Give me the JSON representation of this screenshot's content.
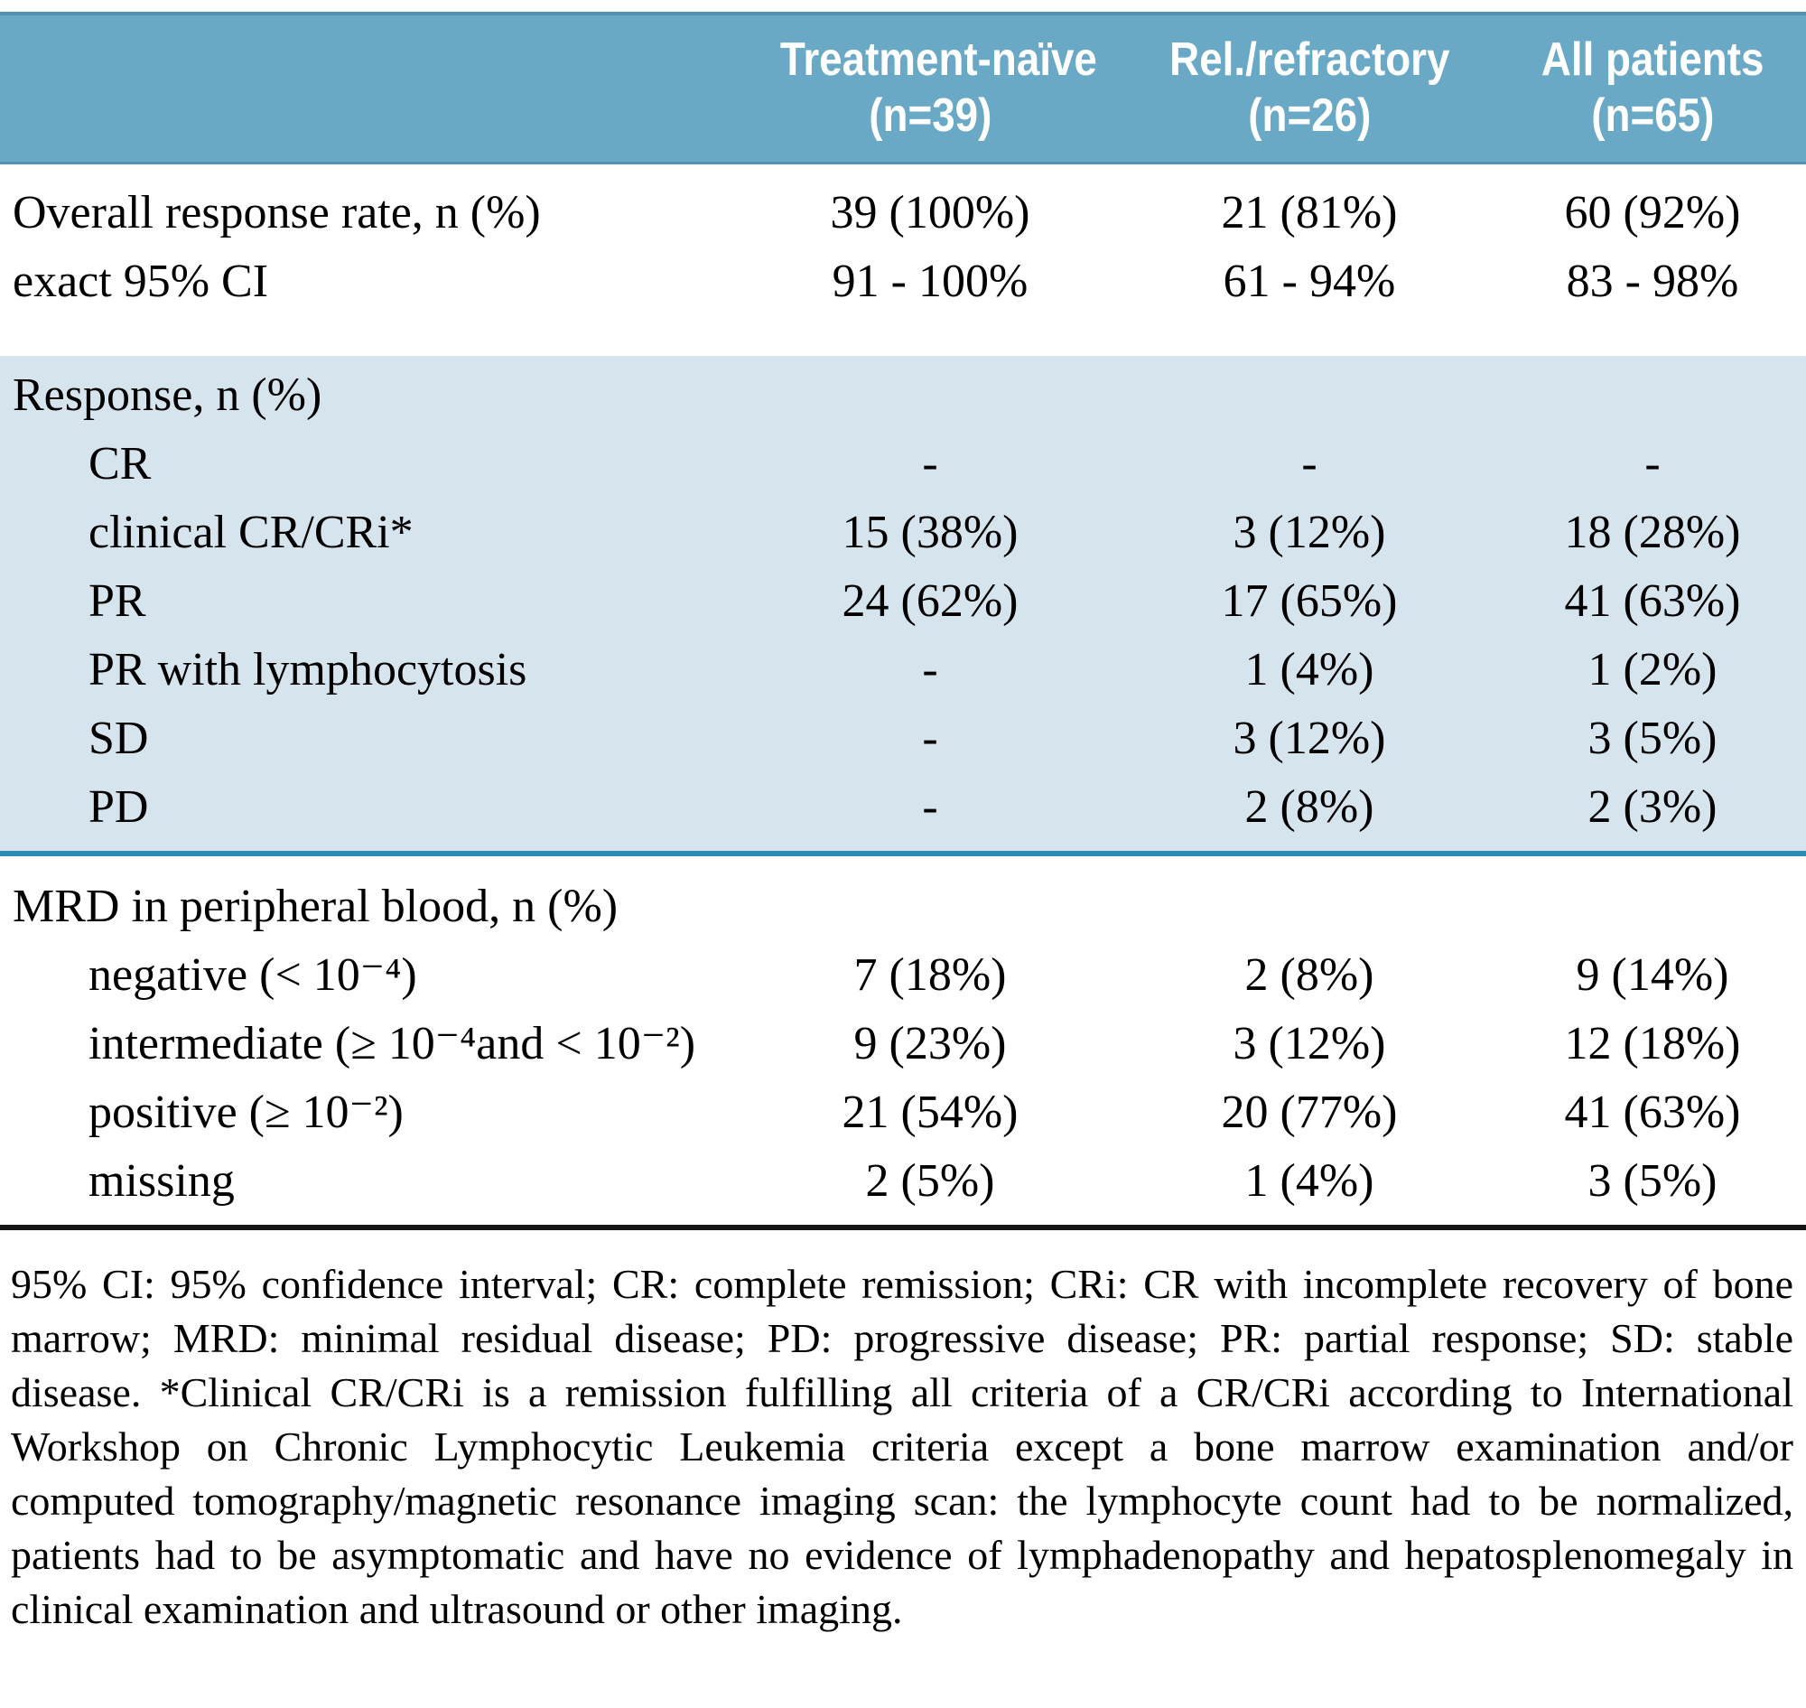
{
  "colors": {
    "header_bg": "#69a9c5",
    "header_edge": "#5692b0",
    "section_bg": "#d6e4ed",
    "teal_rule": "#2e8db6",
    "black_rule": "#161616",
    "header_text": "#ffffff",
    "body_text": "#000000"
  },
  "header": {
    "columns": [
      {
        "label": "Treatment-naïve",
        "n": "(n=39)"
      },
      {
        "label": "Rel./refractory",
        "n": "(n=26)"
      },
      {
        "label": "All patients",
        "n": "(n=65)"
      }
    ]
  },
  "rows": [
    {
      "label": "Overall response rate, n (%)",
      "values": [
        "39 (100%)",
        "21 (81%)",
        "60 (92%)"
      ]
    },
    {
      "label": "exact 95% CI",
      "values": [
        "91 - 100%",
        "61 - 94%",
        "83 - 98%"
      ]
    },
    {
      "label": "Response, n (%)",
      "values": [
        "",
        "",
        ""
      ]
    },
    {
      "label": "CR",
      "values": [
        "-",
        "-",
        "-"
      ]
    },
    {
      "label": "clinical CR/CRi*",
      "values": [
        "15 (38%)",
        "3 (12%)",
        "18 (28%)"
      ]
    },
    {
      "label": "PR",
      "values": [
        "24 (62%)",
        "17 (65%)",
        "41 (63%)"
      ]
    },
    {
      "label": "PR with lymphocytosis",
      "values": [
        "-",
        "1 (4%)",
        "1 (2%)"
      ]
    },
    {
      "label": "SD",
      "values": [
        "-",
        "3 (12%)",
        "3 (5%)"
      ]
    },
    {
      "label": "PD",
      "values": [
        "-",
        "2 (8%)",
        "2 (3%)"
      ]
    },
    {
      "label": "MRD in peripheral blood, n (%)",
      "values": [
        "",
        "",
        ""
      ]
    },
    {
      "label": "negative (< 10⁻⁴)",
      "values": [
        "7 (18%)",
        "2 (8%)",
        "9 (14%)"
      ]
    },
    {
      "label": "intermediate (≥ 10⁻⁴and < 10⁻²)",
      "values": [
        "9 (23%)",
        "3 (12%)",
        "12 (18%)"
      ]
    },
    {
      "label": "positive (≥ 10⁻²)",
      "values": [
        "21 (54%)",
        "20 (77%)",
        "41 (63%)"
      ]
    },
    {
      "label": "missing",
      "values": [
        "2 (5%)",
        "1 (4%)",
        "3 (5%)"
      ]
    }
  ],
  "footnote": "95% CI: 95% confidence interval; CR: complete remission; CRi: CR with incomplete recovery of bone marrow; MRD: minimal residual disease; PD: progressive disease; PR: partial response; SD: stable disease. *Clinical CR/CRi is a remission fulfilling all criteria of a CR/CRi according to International Workshop on Chronic Lymphocytic Leukemia criteria except a bone marrow examination and/or computed tomography/magnetic resonance imaging scan: the lymphocyte count had to be normalized, patients had to be asymptomatic and have no evidence of lymphadenopathy and hepatosplenomegaly in clinical examination and ultrasound or other imaging."
}
